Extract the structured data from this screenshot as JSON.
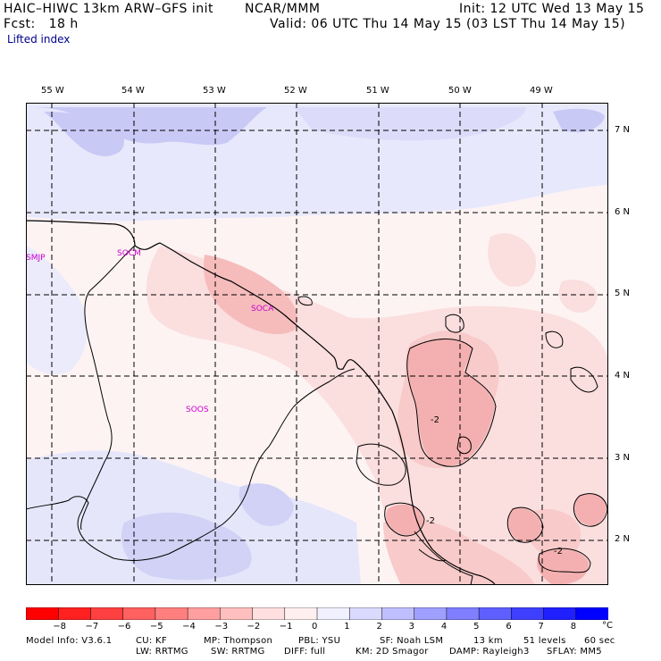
{
  "header": {
    "model": "HAIC–HIWC 13km ARW–GFS init",
    "org": "NCAR/MMM",
    "init": "Init: 12 UTC Wed 13 May 15",
    "fcst": "Fcst:   18 h",
    "valid": "Valid: 06 UTC Thu 14 May 15 (03 LST Thu 14 May 15)",
    "field": "Lifted index"
  },
  "longitudes": [
    "55 W",
    "54 W",
    "53 W",
    "52 W",
    "51 W",
    "50 W",
    "49 W"
  ],
  "latitudes": [
    "7 N",
    "6 N",
    "5 N",
    "4 N",
    "3 N",
    "2 N"
  ],
  "stations": [
    "SMJP",
    "SOCM",
    "SOCA",
    "SOOS"
  ],
  "contour_labels": [
    "-2",
    "-2",
    "-2"
  ],
  "colorbar": {
    "ticks": [
      "−8",
      "−7",
      "−6",
      "−5",
      "−4",
      "−3",
      "−2",
      "−1",
      "0",
      "1",
      "2",
      "3",
      "4",
      "5",
      "6",
      "7",
      "8"
    ],
    "unit": "°C",
    "colors": [
      "#ff0000",
      "#ff2020",
      "#ff4040",
      "#ff6060",
      "#ff7f7f",
      "#ff9f9f",
      "#ffbfbf",
      "#ffdfdf",
      "#ffefef",
      "#f0f0ff",
      "#dadaff",
      "#bfbfff",
      "#9f9fff",
      "#7f7fff",
      "#5f5fff",
      "#3f3fff",
      "#1f1fff",
      "#0000ff"
    ]
  },
  "footer": {
    "line1": [
      "Model Info: V3.6.1",
      "CU: KF",
      "MP: Thompson",
      "PBL: YSU",
      "SF: Noah LSM",
      "13 km",
      "51 levels",
      "60 sec"
    ],
    "line2": [
      "LW: RRTMG",
      "SW: RRTMG",
      "DIFF: full",
      "KM: 2D Smagor",
      "DAMP: Rayleigh3",
      "SFLAY: MM5"
    ]
  }
}
